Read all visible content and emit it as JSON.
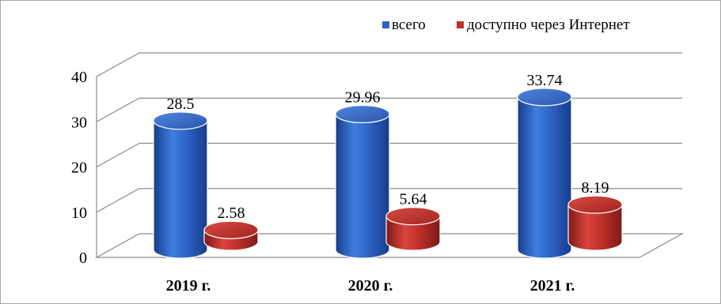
{
  "chart_data": {
    "type": "bar",
    "categories": [
      "2019 г.",
      "2020 г.",
      "2021 г."
    ],
    "series": [
      {
        "name": "всего",
        "values": [
          28.5,
          29.96,
          33.74
        ],
        "color": "#2e64c8"
      },
      {
        "name": "доступно через Интернет",
        "values": [
          2.58,
          5.64,
          8.19
        ],
        "color": "#c0312b"
      }
    ],
    "y_ticks": [
      "0",
      "10",
      "20",
      "30",
      "40"
    ],
    "ylim": [
      0,
      40
    ],
    "grid": true,
    "legend_position": "top-right",
    "style": "3d-cylinder"
  }
}
